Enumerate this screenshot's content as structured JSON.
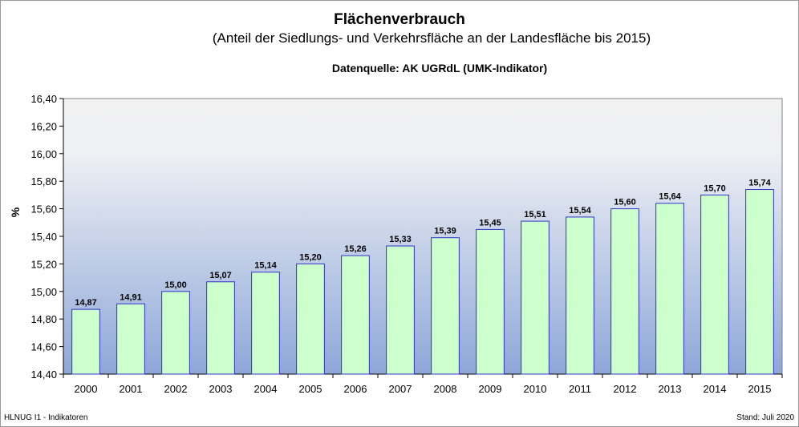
{
  "chart_data": {
    "type": "bar",
    "title": "Flächenverbrauch",
    "subtitle": "(Anteil der Siedlungs- und Verkehrsfläche an der Landesfläche bis 2015)",
    "source": "Datenquelle: AK UGRdL (UMK-Indikator)",
    "ylabel": "%",
    "xlabel": "",
    "categories": [
      "2000",
      "2001",
      "2002",
      "2003",
      "2004",
      "2005",
      "2006",
      "2007",
      "2008",
      "2009",
      "2010",
      "2011",
      "2012",
      "2013",
      "2014",
      "2015"
    ],
    "values": [
      14.87,
      14.91,
      15.0,
      15.07,
      15.14,
      15.2,
      15.26,
      15.33,
      15.39,
      15.45,
      15.51,
      15.54,
      15.6,
      15.64,
      15.7,
      15.74
    ],
    "value_labels": [
      "14,87",
      "14,91",
      "15,00",
      "15,07",
      "15,14",
      "15,20",
      "15,26",
      "15,33",
      "15,39",
      "15,45",
      "15,51",
      "15,54",
      "15,60",
      "15,64",
      "15,70",
      "15,74"
    ],
    "ylim": [
      14.4,
      16.4
    ],
    "yticks": [
      14.4,
      14.6,
      14.8,
      15.0,
      15.2,
      15.4,
      15.6,
      15.8,
      16.0,
      16.2,
      16.4
    ],
    "ytick_labels": [
      "14,40",
      "14,60",
      "14,80",
      "15,00",
      "15,20",
      "15,40",
      "15,60",
      "15,80",
      "16,00",
      "16,20",
      "16,40"
    ],
    "grid": false,
    "legend": "none",
    "colors": {
      "bar_fill": "#ccffcc",
      "bar_stroke": "#3333cc",
      "plot_top": "#f2f2f2",
      "plot_bottom": "#8ea7d8"
    }
  },
  "footer": {
    "left": "HLNUG I1  - Indikatoren",
    "right": "Stand: Juli 2020"
  }
}
